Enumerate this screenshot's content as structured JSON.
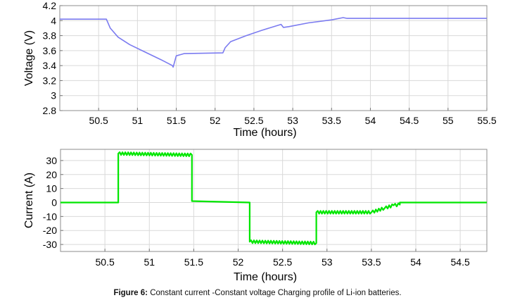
{
  "caption": {
    "label": "Figure 6:",
    "text": "Constant current -Constant voltage Charging profile of Li-ion batteries."
  },
  "chart_data": [
    {
      "type": "line",
      "xlabel": "Time (hours)",
      "ylabel": "Voltage (V)",
      "xlim": [
        50.0,
        55.5
      ],
      "ylim": [
        2.8,
        4.2
      ],
      "xticks": [
        50.5,
        51,
        51.5,
        52,
        52.5,
        53,
        53.5,
        54,
        54.5,
        55,
        55.5
      ],
      "xtick_labels": [
        "50.5",
        "51",
        "51.5",
        "52",
        "52.5",
        "53",
        "53.5",
        "54",
        "54.5",
        "55",
        "55.5"
      ],
      "yticks": [
        2.8,
        3,
        3.2,
        3.4,
        3.6,
        3.8,
        4,
        4.2
      ],
      "ytick_labels": [
        "2.8",
        "3",
        "3.2",
        "3.4",
        "3.6",
        "3.8",
        "4",
        "4.2"
      ],
      "grid": true,
      "color": "#7b7bf0",
      "series": [
        {
          "x": [
            50.0,
            50.6,
            50.65,
            50.75,
            50.9,
            51.1,
            51.3,
            51.45,
            51.46,
            51.5,
            51.6,
            52.1,
            52.13,
            52.2,
            52.4,
            52.6,
            52.85,
            52.88,
            52.95,
            53.2,
            53.5,
            53.65,
            53.7,
            54.0,
            55.5
          ],
          "y": [
            4.02,
            4.02,
            3.9,
            3.78,
            3.68,
            3.58,
            3.48,
            3.4,
            3.38,
            3.53,
            3.56,
            3.57,
            3.64,
            3.72,
            3.8,
            3.87,
            3.95,
            3.91,
            3.92,
            3.97,
            4.01,
            4.04,
            4.03,
            4.03,
            4.03
          ]
        }
      ]
    },
    {
      "type": "line",
      "xlabel": "Time (hours)",
      "ylabel": "Current (A)",
      "xlim": [
        50.0,
        54.8
      ],
      "ylim": [
        -35,
        38
      ],
      "xticks": [
        50.5,
        51,
        51.5,
        52,
        52.5,
        53,
        53.5,
        54,
        54.5
      ],
      "xtick_labels": [
        "50.5",
        "51",
        "51.5",
        "52",
        "52.5",
        "53",
        "53.5",
        "54",
        "54.5"
      ],
      "yticks": [
        -30,
        -20,
        -10,
        0,
        10,
        20,
        30
      ],
      "ytick_labels": [
        "-30",
        "-20",
        "-10",
        "0",
        "10",
        "20",
        "30"
      ],
      "grid": true,
      "color": "#00e600",
      "series": [
        {
          "x": [
            50.0,
            50.65,
            50.65,
            51.48,
            51.48,
            52.13,
            52.13,
            52.88,
            52.88,
            53.5,
            53.65,
            53.75,
            53.82,
            53.82,
            54.8
          ],
          "y": [
            0,
            0,
            35,
            34,
            1,
            0,
            -28,
            -29,
            -7,
            -7,
            -4,
            -2,
            -1.5,
            0,
            0
          ]
        }
      ]
    }
  ]
}
